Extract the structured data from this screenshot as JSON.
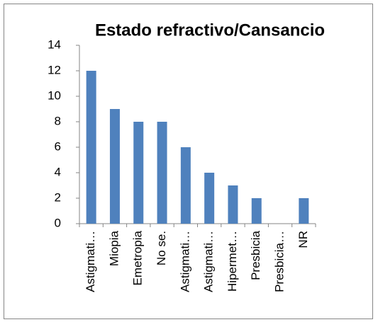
{
  "chart_data": {
    "type": "bar",
    "title": "Estado refractivo/Cansancio",
    "categories": [
      "Astigmati…",
      "Miopia",
      "Emetropia",
      "No se.",
      "Astigmati…",
      "Astigmati…",
      "Hipermet…",
      "Presbicia",
      "Presbicia…",
      "NR"
    ],
    "values": [
      12,
      9,
      8,
      8,
      6,
      4,
      3,
      2,
      0,
      2
    ],
    "color": "#4f81bd",
    "ylim": [
      0,
      14
    ],
    "yticks": [
      0,
      2,
      4,
      6,
      8,
      10,
      12,
      14
    ],
    "grid": false
  }
}
